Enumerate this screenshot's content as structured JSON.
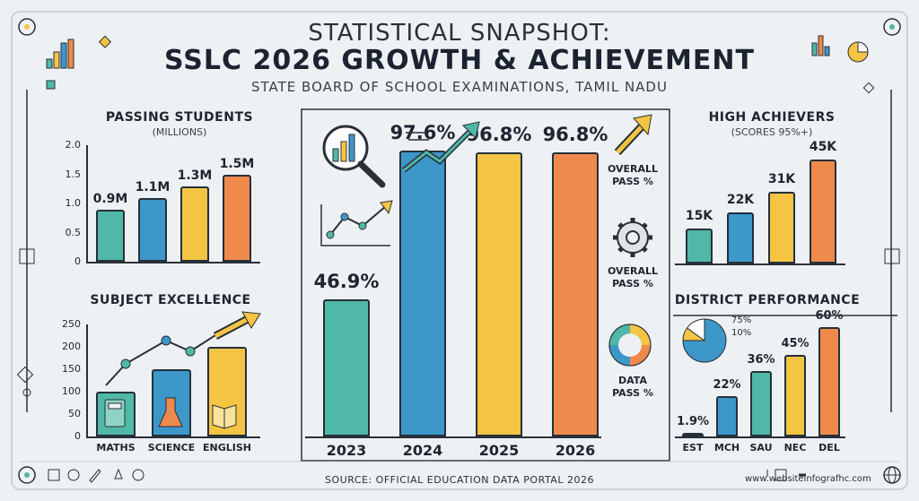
{
  "header": {
    "line1": "STATISTICAL SNAPSHOT:",
    "line2": "SSLC 2026 GROWTH & ACHIEVEMENT",
    "line3": "STATE BOARD OF SCHOOL EXAMINATIONS, TAMIL NADU"
  },
  "footer": {
    "source": "SOURCE: OFFICIAL EDUCATION DATA PORTAL 2026",
    "website": "www.websiteinfografhc.com"
  },
  "side_labels": {
    "overall_pass_1": "OVERALL PASS %",
    "overall_pass_2": "OVERALL PASS %",
    "data_pass": "DATA PASS %"
  },
  "colors": {
    "teal": "#4fb8a6",
    "blue": "#3d97c9",
    "yellow": "#f4c443",
    "orange": "#ef8a4c"
  },
  "chart_data": [
    {
      "id": "passing",
      "type": "bar",
      "title": "PASSING STUDENTS",
      "subtitle": "(MILLIONS)",
      "yticks": [
        "2.0",
        "1.5",
        "1.0",
        "0.5",
        "0"
      ],
      "ylim": [
        0,
        2.0
      ],
      "values": [
        0.9,
        1.1,
        1.3,
        1.5
      ],
      "labels": [
        "0.9M",
        "1.1M",
        "1.3M",
        "1.5M"
      ],
      "categories": [
        "",
        "",
        "",
        ""
      ]
    },
    {
      "id": "subject",
      "type": "bar",
      "title": "SUBJECT EXCELLENCE",
      "yticks": [
        "250",
        "200",
        "150",
        "100",
        "50",
        "0"
      ],
      "ylim": [
        0,
        250
      ],
      "categories": [
        "MATHS",
        "SCIENCE",
        "ENGLISH"
      ],
      "values": [
        100,
        150,
        200
      ],
      "labels": [
        "",
        "",
        ""
      ]
    },
    {
      "id": "main",
      "type": "bar",
      "categories": [
        "2023",
        "2024",
        "2025",
        "2026"
      ],
      "values": [
        46.9,
        97.6,
        96.8,
        96.8
      ],
      "labels": [
        "46.9%",
        "97.6%",
        "96.8%",
        "96.8%"
      ],
      "ylim": [
        0,
        100
      ]
    },
    {
      "id": "achievers",
      "type": "bar",
      "title": "HIGH ACHIEVERS",
      "subtitle": "(SCORES 95%+)",
      "values": [
        15,
        22,
        31,
        45
      ],
      "labels": [
        "15K",
        "22K",
        "31K",
        "45K"
      ],
      "categories": [
        "",
        "",
        "",
        ""
      ],
      "ylim": [
        0,
        50
      ]
    },
    {
      "id": "district",
      "type": "bar",
      "title": "DISTRICT PERFORMANCE",
      "categories": [
        "EST",
        "MCH",
        "SAU",
        "NEC",
        "DEL"
      ],
      "values": [
        1.9,
        22,
        36,
        45,
        60
      ],
      "labels": [
        "1.9%",
        "22%",
        "36%",
        "45%",
        "60%"
      ],
      "ylim": [
        0,
        70
      ]
    },
    {
      "id": "district-pie",
      "type": "pie",
      "labels": [
        "75%",
        "10%"
      ],
      "values": [
        75,
        10
      ]
    }
  ]
}
